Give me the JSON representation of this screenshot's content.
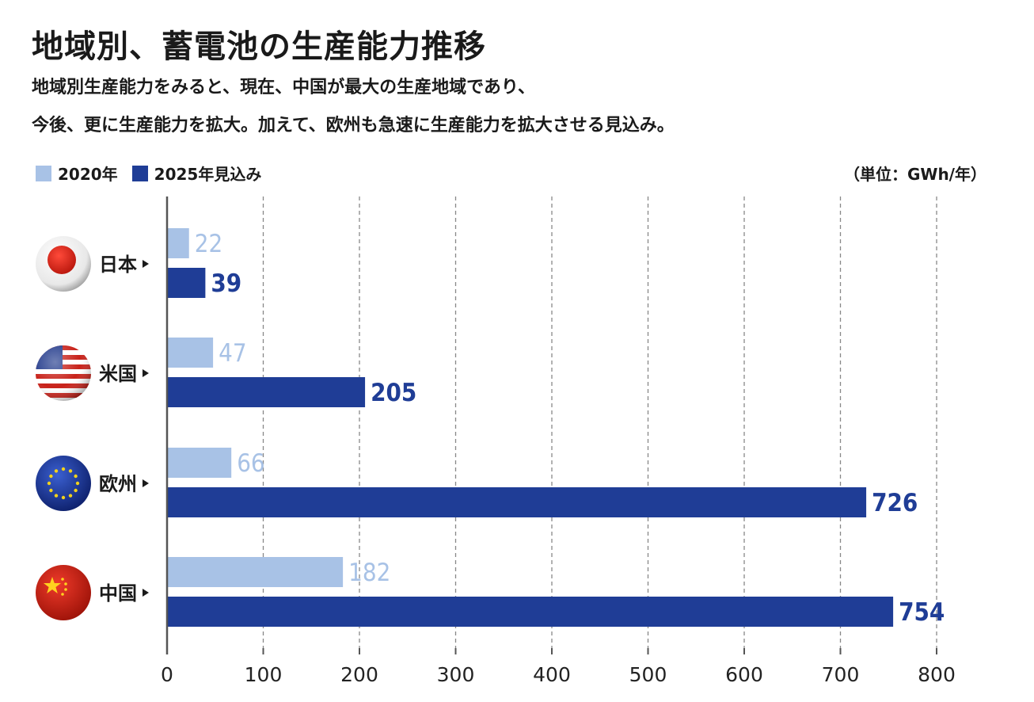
{
  "title": "地域別、蓄電池の生産能力推移",
  "subtitle_lines": [
    "地域別生産能力をみると、現在、中国が最大の生産地域であり、",
    "今後、更に生産能力を拡大。加えて、欧州も急速に生産能力を拡大させる見込み。"
  ],
  "unit": "（単位：GWh/年）",
  "colors": {
    "light": "#a8c2e6",
    "dark": "#1f3d96",
    "axis": "#555555",
    "grid": "#888888"
  },
  "chart_data": {
    "type": "bar",
    "orientation": "horizontal",
    "categories": [
      "日本",
      "米国",
      "欧州",
      "中国"
    ],
    "category_icons": [
      "japan-flag-icon",
      "usa-flag-icon",
      "eu-flag-icon",
      "china-flag-icon"
    ],
    "series": [
      {
        "name": "2020年",
        "values": [
          22,
          47,
          66,
          182
        ]
      },
      {
        "name": "2025年見込み",
        "values": [
          39,
          205,
          726,
          754
        ]
      }
    ],
    "xlim": [
      0,
      800
    ],
    "xticks": [
      "0",
      "100",
      "200",
      "300",
      "400",
      "500",
      "600",
      "700",
      "800"
    ],
    "grid": true,
    "legend_position": "top-left"
  }
}
